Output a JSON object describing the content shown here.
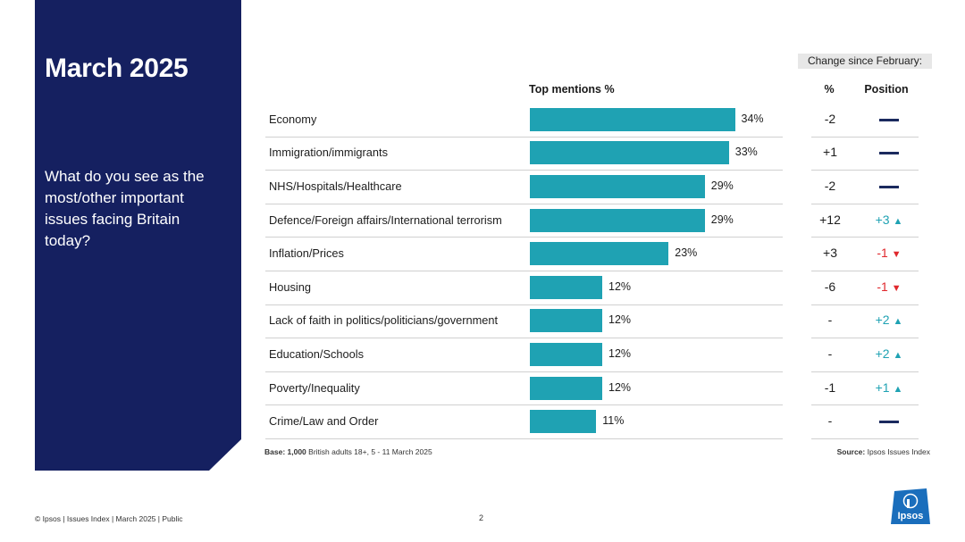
{
  "title": "March 2025",
  "question": "What do you see as the most/other important issues facing Britain today?",
  "change_header": "Change since February:",
  "col_headers": {
    "top_mentions": "Top mentions %",
    "pct": "%",
    "position": "Position"
  },
  "chart_data": {
    "type": "bar",
    "orientation": "horizontal",
    "xlabel": "Top mentions %",
    "categories": [
      "Economy",
      "Immigration/immigrants",
      "NHS/Hospitals/Healthcare",
      "Defence/Foreign affairs/International terrorism",
      "Inflation/Prices",
      "Housing",
      "Lack of faith in politics/politicians/government",
      "Education/Schools",
      "Poverty/Inequality",
      "Crime/Law and Order"
    ],
    "values": [
      34,
      33,
      29,
      29,
      23,
      12,
      12,
      12,
      12,
      11
    ],
    "value_labels": [
      "34%",
      "33%",
      "29%",
      "29%",
      "23%",
      "12%",
      "12%",
      "12%",
      "12%",
      "11%"
    ],
    "bar_color": "#1fa2b3"
  },
  "rows": [
    {
      "label": "Economy",
      "value_label": "34%",
      "change_pct": "-2",
      "position": "",
      "direction": "same"
    },
    {
      "label": "Immigration/immigrants",
      "value_label": "33%",
      "change_pct": "+1",
      "position": "",
      "direction": "same"
    },
    {
      "label": "NHS/Hospitals/Healthcare",
      "value_label": "29%",
      "change_pct": "-2",
      "position": "",
      "direction": "same"
    },
    {
      "label": "Defence/Foreign affairs/International terrorism",
      "value_label": "29%",
      "change_pct": "+12",
      "position": "+3",
      "direction": "up"
    },
    {
      "label": "Inflation/Prices",
      "value_label": "23%",
      "change_pct": "+3",
      "position": "-1",
      "direction": "down"
    },
    {
      "label": "Housing",
      "value_label": "12%",
      "change_pct": "-6",
      "position": "-1",
      "direction": "down"
    },
    {
      "label": "Lack of faith in politics/politicians/government",
      "value_label": "12%",
      "change_pct": "-",
      "position": "+2",
      "direction": "up"
    },
    {
      "label": "Education/Schools",
      "value_label": "12%",
      "change_pct": "-",
      "position": "+2",
      "direction": "up"
    },
    {
      "label": "Poverty/Inequality",
      "value_label": "12%",
      "change_pct": "-1",
      "position": "+1",
      "direction": "up"
    },
    {
      "label": "Crime/Law and Order",
      "value_label": "11%",
      "change_pct": "-",
      "position": "",
      "direction": "same"
    }
  ],
  "base_note": {
    "bold": "Base: 1,000",
    "text": " British adults 18+, 5 - 11 March 2025"
  },
  "source_note": {
    "bold": "Source:",
    "text": " Ipsos Issues Index"
  },
  "footer": "© Ipsos | Issues Index | March 2025 | Public",
  "page_number": "2",
  "logo_text": "Ipsos",
  "colors": {
    "panel": "#152060",
    "bar": "#1fa2b3",
    "up": "#1fa2b3",
    "down": "#e0282d",
    "dash": "#1b2a5e",
    "logo": "#1a6ebc"
  }
}
